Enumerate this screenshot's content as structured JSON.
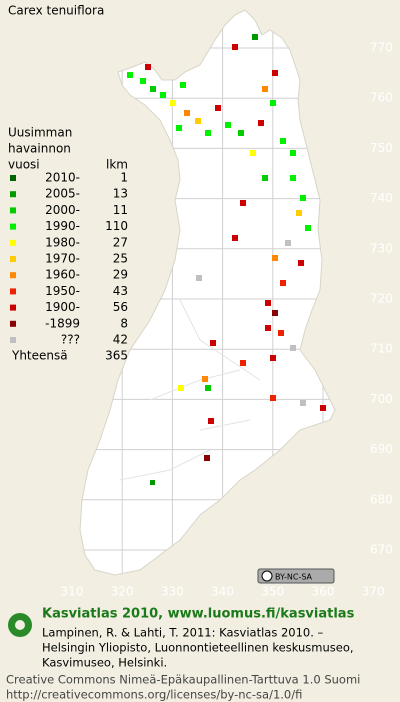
{
  "title": "Carex tenuiflora",
  "legend": {
    "heading": [
      "Uusimman",
      "havainnon",
      "vuosi"
    ],
    "count_heading": "lkm",
    "rows": [
      {
        "label": "2010-",
        "count": 1,
        "color": "#006400"
      },
      {
        "label": "2005-",
        "count": 13,
        "color": "#009a00"
      },
      {
        "label": "2000-",
        "count": 11,
        "color": "#00cc00"
      },
      {
        "label": "1990-",
        "count": 110,
        "color": "#00f000"
      },
      {
        "label": "1980-",
        "count": 27,
        "color": "#ffff00"
      },
      {
        "label": "1970-",
        "count": 25,
        "color": "#ffcc00"
      },
      {
        "label": "1960-",
        "count": 29,
        "color": "#ff8800"
      },
      {
        "label": "1950-",
        "count": 43,
        "color": "#ee2200"
      },
      {
        "label": "1900-",
        "count": 56,
        "color": "#cc0000"
      },
      {
        "label": "-1899",
        "count": 8,
        "color": "#880000"
      },
      {
        "label": "???",
        "count": 42,
        "color": "#c0c0c0"
      }
    ],
    "total": {
      "label": "Yhteensä",
      "count": 365
    }
  },
  "grid": {
    "x_labels": [
      310,
      320,
      330,
      340,
      350,
      360,
      370
    ],
    "y_labels": [
      770,
      760,
      750,
      740,
      730,
      720,
      710,
      700,
      690,
      680,
      670
    ]
  },
  "badge": "BY-NC-SA",
  "footer": {
    "site": "Kasviatlas 2010, www.luomus.fi/kasviatlas",
    "citation": [
      "Lampinen, R. & Lahti, T. 2011: Kasviatlas 2010. –",
      "Helsingin Yliopisto, Luonnontieteellinen keskusmuseo,",
      "Kasvimuseo, Helsinki."
    ],
    "license": [
      "Creative Commons Nimeä-Epäkaupallinen-Tarttuva 1.0 Suomi",
      "http://creativecommons.org/licenses/by-nc-sa/1.0/fi"
    ]
  }
}
